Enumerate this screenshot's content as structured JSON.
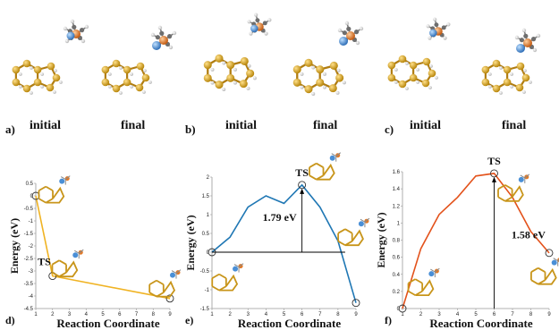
{
  "structure_panels": [
    {
      "letter": "a)",
      "left_label": "initial",
      "right_label": "final"
    },
    {
      "letter": "b)",
      "left_label": "initial",
      "right_label": "final"
    },
    {
      "letter": "c)",
      "left_label": "initial",
      "right_label": "final"
    }
  ],
  "colors": {
    "carbon": "#d9a520",
    "nitrogen": "#4a8fd6",
    "boron": "#e07a2a",
    "hydrogen": "#e6e6e6"
  },
  "chart_data": [
    {
      "type": "line",
      "panel": "d)",
      "xlabel": "Reaction Coordinate",
      "ylabel": "Energy (eV)",
      "color": "#f0b323",
      "x": [
        1,
        2,
        9
      ],
      "y": [
        0,
        -3.2,
        -4.1
      ],
      "xlim": [
        1,
        9
      ],
      "ylim": [
        -4.5,
        0.5
      ],
      "xticks": [
        "1",
        "2",
        "3",
        "4",
        "5",
        "6",
        "7",
        "8",
        "9"
      ],
      "yticks": [
        "0.5",
        "0",
        "-0.5",
        "-1",
        "-1.5",
        "-2",
        "-2.5",
        "-3",
        "-3.5",
        "-4",
        "-4.5"
      ],
      "annotations": [
        {
          "text": "TS",
          "x": 2,
          "y": -3.2
        }
      ]
    },
    {
      "type": "line",
      "panel": "e)",
      "xlabel": "Reaction Coordinate",
      "ylabel": "Energy (eV)",
      "color": "#1f77b4",
      "x": [
        1,
        2,
        3,
        4,
        5,
        6,
        7,
        8,
        9
      ],
      "y": [
        0,
        0.4,
        1.2,
        1.5,
        1.3,
        1.79,
        1.2,
        0.3,
        -1.35
      ],
      "xlim": [
        1,
        9
      ],
      "ylim": [
        -1.5,
        2
      ],
      "xticks": [
        "1",
        "2",
        "3",
        "4",
        "5",
        "6",
        "7",
        "8",
        "9"
      ],
      "yticks": [
        "2",
        "1.5",
        "1",
        "0.5",
        "0",
        "-0.5",
        "-1",
        "-1.5"
      ],
      "annotations": [
        {
          "text": "TS",
          "x": 6,
          "y": 1.79
        },
        {
          "text": "1.79 eV",
          "x": 6,
          "y": 0.9
        }
      ]
    },
    {
      "type": "line",
      "panel": "f)",
      "xlabel": "Reaction Coordinate",
      "ylabel": "Energy (eV)",
      "color": "#e3521b",
      "x": [
        1,
        2,
        3,
        4,
        5,
        6,
        7,
        8,
        9
      ],
      "y": [
        0,
        0.7,
        1.1,
        1.3,
        1.55,
        1.58,
        1.3,
        0.9,
        0.65
      ],
      "xlim": [
        1,
        9
      ],
      "ylim": [
        0,
        1.6
      ],
      "xticks": [
        "1",
        "2",
        "3",
        "4",
        "5",
        "6",
        "7",
        "8",
        "9"
      ],
      "yticks": [
        "1.6",
        "1.4",
        "1.2",
        "1",
        "0.8",
        "0.6",
        "0.4",
        "0.2",
        "0"
      ],
      "annotations": [
        {
          "text": "TS",
          "x": 6,
          "y": 1.58
        },
        {
          "text": "1.58 eV",
          "x": 6.8,
          "y": 0.85
        }
      ]
    }
  ]
}
